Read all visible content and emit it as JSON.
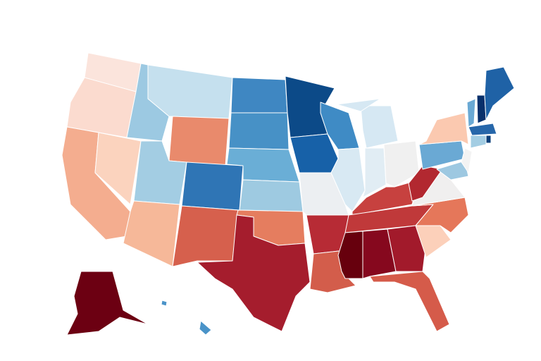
{
  "map": {
    "regions": [
      {
        "color": "#fbe4dc"
      },
      {
        "color": "#fbdbcf"
      },
      {
        "color": "#f4ad8f"
      },
      {
        "color": "#fbd3be"
      },
      {
        "color": "#9cc9e2"
      },
      {
        "color": "#c5e0ee"
      },
      {
        "color": "#e98a6c"
      },
      {
        "color": "#a3cde3"
      },
      {
        "color": "#f6b899"
      },
      {
        "color": "#2f75b5"
      },
      {
        "color": "#d6604d"
      },
      {
        "color": "#3f87c2"
      },
      {
        "color": "#4791c6"
      },
      {
        "color": "#6aaed6"
      },
      {
        "color": "#9ecae1"
      },
      {
        "color": "#e57d5f"
      },
      {
        "color": "#a51d2d"
      },
      {
        "color": "#0c4a88"
      },
      {
        "color": "#1761a8"
      },
      {
        "color": "#eceff2"
      },
      {
        "color": "#b72b35"
      },
      {
        "color": "#d35d4b"
      },
      {
        "color": "#3f8bc5"
      },
      {
        "color": "#d8e9f3"
      },
      {
        "color": "#d6e8f3"
      },
      {
        "color": "#d6e8f3"
      },
      {
        "color": "#e1edf4"
      },
      {
        "color": "#f0f0f0"
      },
      {
        "color": "#c7413f"
      },
      {
        "color": "#c0393a"
      },
      {
        "color": "#67000d"
      },
      {
        "color": "#86081e"
      },
      {
        "color": "#a21a2b"
      },
      {
        "color": "#d55b4a"
      },
      {
        "color": "#fcd0ba"
      },
      {
        "color": "#e5775a"
      },
      {
        "color": "#f0efef"
      },
      {
        "color": "#b22830"
      },
      {
        "color": "#6aa9d4"
      },
      {
        "color": "#fbc9b0"
      },
      {
        "color": "#9dc8e1"
      },
      {
        "color": "#f3f3f3"
      },
      {
        "color": "#6aa9d4"
      },
      {
        "color": "#08306b"
      },
      {
        "color": "#1f62a6"
      },
      {
        "color": "#2767aa"
      },
      {
        "color": "#a3cde3"
      },
      {
        "color": "#0c3f7a"
      },
      {
        "color": "#6c0012"
      },
      {
        "color": "#4a93c8"
      },
      {
        "color": "#4a93c8"
      }
    ]
  }
}
